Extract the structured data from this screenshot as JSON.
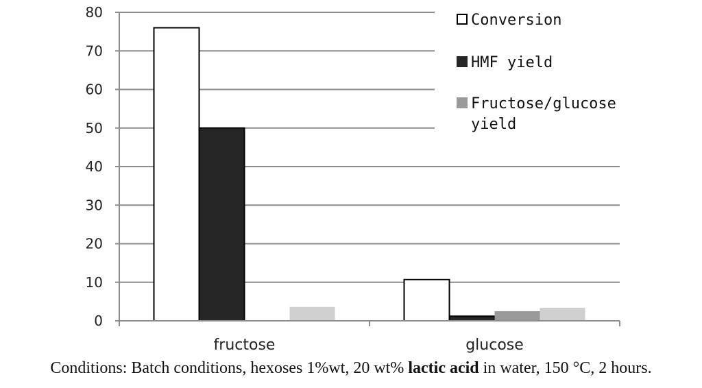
{
  "chart_data": {
    "type": "bar",
    "categories": [
      "fructose",
      "glucose"
    ],
    "series": [
      {
        "name": "Conversion",
        "values": [
          76,
          10.7
        ],
        "color": "#ffffff",
        "stroke": "#000000"
      },
      {
        "name": "HMF yield",
        "values": [
          50,
          1.2
        ],
        "color": "#262626",
        "stroke": "#000000"
      },
      {
        "name": "Fructose/glucose yield",
        "values": [
          0,
          2.5
        ],
        "color": "#9a9a9a",
        "stroke": "none"
      },
      {
        "name": "",
        "values": [
          3.6,
          3.4
        ],
        "color": "#d0d0d0",
        "stroke": "none"
      }
    ],
    "ylim": [
      0,
      80
    ],
    "yticks": [
      0,
      10,
      20,
      30,
      40,
      50,
      60,
      70,
      80
    ],
    "grid": true,
    "legend_position": "top-right",
    "legend": [
      {
        "lines": [
          "Conversion"
        ],
        "color": "#ffffff",
        "stroke": "#000000"
      },
      {
        "lines": [
          "HMF yield"
        ],
        "color": "#262626",
        "stroke": "#262626"
      },
      {
        "lines": [
          "Fructose/glucose",
          "yield"
        ],
        "color": "#9a9a9a",
        "stroke": "#9a9a9a"
      }
    ]
  },
  "caption": {
    "before": "Conditions: Batch conditions, hexoses 1%wt, 20 wt% ",
    "bold": "lactic acid",
    "after": " in water, 150 °C, 2 hours."
  }
}
